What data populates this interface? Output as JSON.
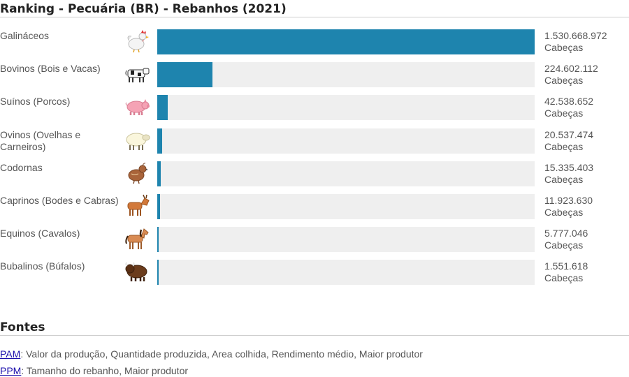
{
  "title": "Ranking - Pecuária (BR) - Rebanhos (2021)",
  "chart_data": {
    "type": "bar",
    "orientation": "horizontal",
    "unit": "Cabeças",
    "xlim": [
      0,
      1530668972
    ],
    "rows": [
      {
        "label": "Galináceos",
        "icon": "chicken-icon",
        "value": 1530668972,
        "value_text": "1.530.668.972"
      },
      {
        "label": "Bovinos (Bois e Vacas)",
        "icon": "cow-icon",
        "value": 224602112,
        "value_text": "224.602.112"
      },
      {
        "label": "Suínos (Porcos)",
        "icon": "pig-icon",
        "value": 42538652,
        "value_text": "42.538.652"
      },
      {
        "label": "Ovinos (Ovelhas e Carneiros)",
        "icon": "sheep-icon",
        "value": 20537474,
        "value_text": "20.537.474"
      },
      {
        "label": "Codornas",
        "icon": "quail-icon",
        "value": 15335403,
        "value_text": "15.335.403"
      },
      {
        "label": "Caprinos (Bodes e Cabras)",
        "icon": "goat-icon",
        "value": 11923630,
        "value_text": "11.923.630"
      },
      {
        "label": "Equinos (Cavalos)",
        "icon": "horse-icon",
        "value": 5777046,
        "value_text": "5.777.046"
      },
      {
        "label": "Bubalinos (Búfalos)",
        "icon": "buffalo-icon",
        "value": 1551618,
        "value_text": "1.551.618"
      }
    ],
    "bar_color": "#1e84ae",
    "track_color": "#efefef"
  },
  "sources": {
    "title": "Fontes",
    "items": [
      {
        "link": "PAM",
        "text": ": Valor da produção, Quantidade produzida, Area colhida, Rendimento médio, Maior produtor"
      },
      {
        "link": "PPM",
        "text": ": Tamanho do rebanho, Maior produtor"
      }
    ]
  }
}
